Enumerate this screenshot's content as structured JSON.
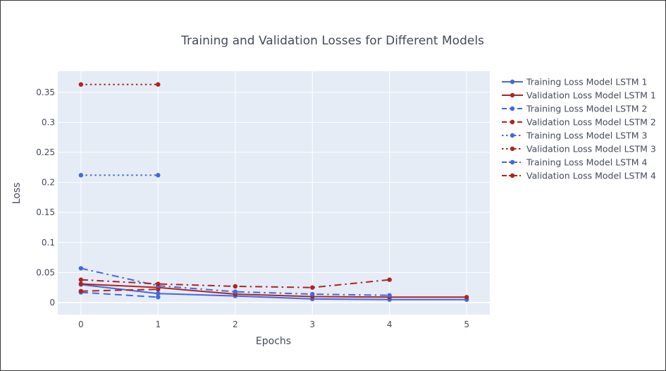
{
  "chart_data": {
    "type": "line",
    "title": "Training and Validation Losses for Different Models",
    "xlabel": "Epochs",
    "ylabel": "Loss",
    "xlim": [
      -0.3,
      5.3
    ],
    "ylim": [
      -0.02,
      0.385
    ],
    "x_ticks": [
      0,
      1,
      2,
      3,
      4,
      5
    ],
    "x_tick_labels": [
      "0",
      "1",
      "2",
      "3",
      "4",
      "5"
    ],
    "y_ticks": [
      0,
      0.05,
      0.1,
      0.15,
      0.2,
      0.25,
      0.3,
      0.35
    ],
    "y_tick_labels": [
      "0",
      "0.05",
      "0.1",
      "0.15",
      "0.2",
      "0.25",
      "0.3",
      "0.35"
    ],
    "grid": true,
    "legend_position": "right",
    "series": [
      {
        "name": "Training Loss Model LSTM 1",
        "color": "#4169e1",
        "dash": "solid",
        "x": [
          0,
          1,
          2,
          3,
          4,
          5
        ],
        "values": [
          0.03,
          0.015,
          0.011,
          0.006,
          0.005,
          0.005
        ]
      },
      {
        "name": "Validation Loss Model LSTM 1",
        "color": "#b22222",
        "dash": "solid",
        "x": [
          0,
          1,
          2,
          3,
          4,
          5
        ],
        "values": [
          0.031,
          0.025,
          0.014,
          0.01,
          0.009,
          0.009
        ]
      },
      {
        "name": "Training Loss Model LSTM 2",
        "color": "#4169e1",
        "dash": "dash",
        "x": [
          0,
          1
        ],
        "values": [
          0.017,
          0.009
        ]
      },
      {
        "name": "Validation Loss Model LSTM 2",
        "color": "#b22222",
        "dash": "dash",
        "x": [
          0,
          1
        ],
        "values": [
          0.019,
          0.022
        ]
      },
      {
        "name": "Training Loss Model LSTM 3",
        "color": "#4169e1",
        "dash": "dot",
        "x": [
          0,
          1
        ],
        "values": [
          0.212,
          0.212
        ]
      },
      {
        "name": "Validation Loss Model LSTM 3",
        "color": "#b22222",
        "dash": "dot",
        "x": [
          0,
          1
        ],
        "values": [
          0.363,
          0.363
        ]
      },
      {
        "name": "Training Loss Model LSTM 4",
        "color": "#4169e1",
        "dash": "dashdot",
        "x": [
          0,
          1,
          2,
          3,
          4
        ],
        "values": [
          0.057,
          0.028,
          0.018,
          0.014,
          0.012
        ]
      },
      {
        "name": "Validation Loss Model LSTM 4",
        "color": "#b22222",
        "dash": "dashdot",
        "x": [
          0,
          1,
          2,
          3,
          4
        ],
        "values": [
          0.038,
          0.031,
          0.027,
          0.025,
          0.038
        ]
      }
    ]
  }
}
